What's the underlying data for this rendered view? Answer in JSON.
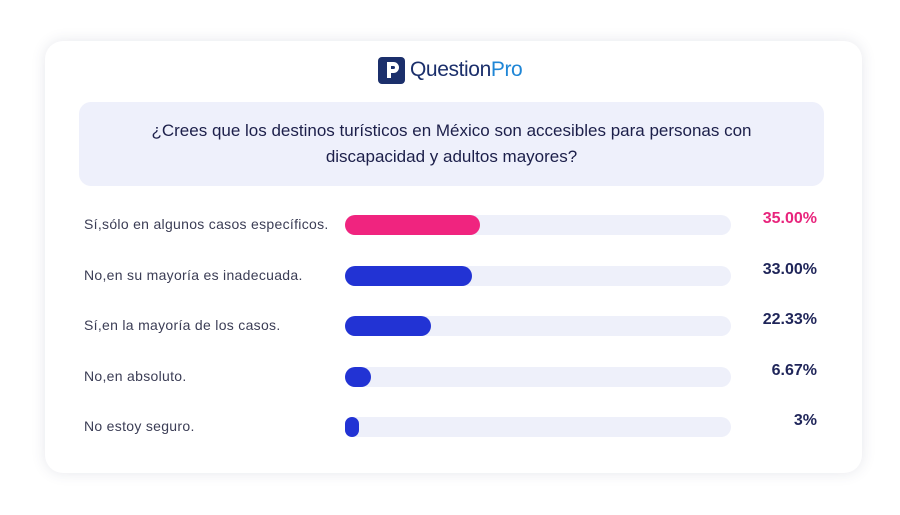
{
  "brand": {
    "name_part1": "Question",
    "name_part2": "Pro",
    "logo_icon": "questionpro-logo-icon",
    "dark_color": "#1b2f6b",
    "accent_color": "#1f86d6"
  },
  "question": "¿Crees que los destinos turísticos en México son accesibles para personas con discapacidad y adultos mayores?",
  "chart_data": {
    "type": "bar",
    "orientation": "horizontal",
    "title": "¿Crees que los destinos turísticos en México son accesibles para personas con discapacidad y adultos mayores?",
    "categories": [
      "Sí,sólo en algunos casos específicos.",
      "No,en su mayoría es inadecuada.",
      "Sí,en la mayoría de los casos.",
      "No,en absoluto.",
      "No estoy seguro."
    ],
    "values": [
      35.0,
      33.0,
      22.33,
      6.67,
      3
    ],
    "value_labels": [
      "35.00%",
      "33.00%",
      "22.33%",
      "6.67%",
      "3%"
    ],
    "colors": [
      "#f0247f",
      "#2233d4",
      "#2233d4",
      "#2233d4",
      "#2233d4"
    ],
    "label_colors": [
      "#e8247c",
      "#1f2559",
      "#1f2559",
      "#1f2559",
      "#1f2559"
    ],
    "track_color": "#eef0fa",
    "xlim": [
      0,
      100
    ],
    "grid": false,
    "legend": "none"
  }
}
